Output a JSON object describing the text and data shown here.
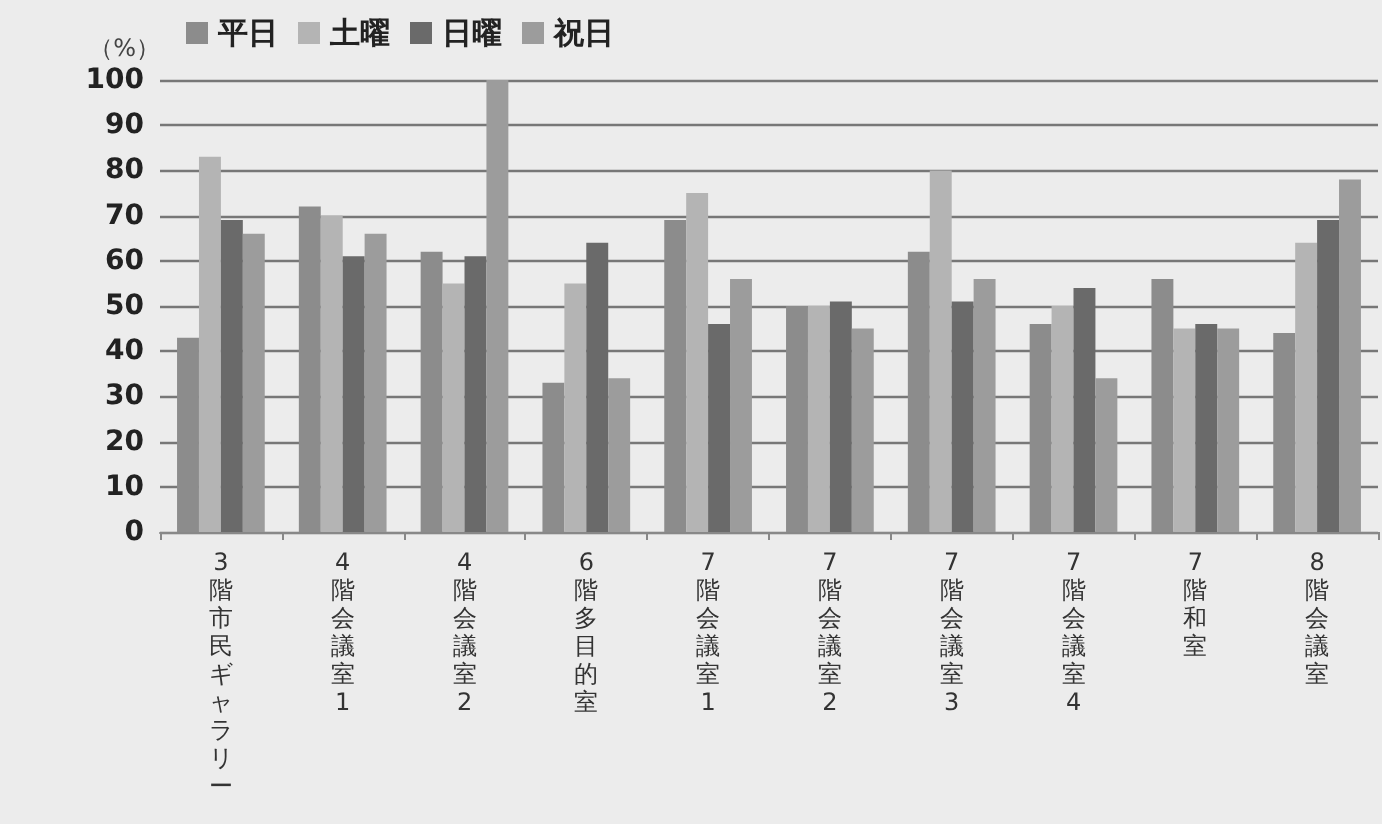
{
  "chart_data": {
    "type": "bar",
    "ylabel": "（%）",
    "categories": [
      "3階市民ギャラリー",
      "4階会議室1",
      "4階会議室2",
      "6階多目的室",
      "7階会議室1",
      "7階会議室2",
      "7階会議室3",
      "7階会議室4",
      "7階和室",
      "8階会議室"
    ],
    "series": [
      {
        "name": "平日",
        "color": "#8c8c8c",
        "values": [
          43,
          72,
          62,
          33,
          69,
          50,
          62,
          46,
          56,
          44
        ]
      },
      {
        "name": "土曜",
        "color": "#b4b4b4",
        "values": [
          83,
          70,
          55,
          55,
          75,
          50,
          80,
          50,
          45,
          64
        ]
      },
      {
        "name": "日曜",
        "color": "#6a6a6a",
        "values": [
          69,
          61,
          61,
          64,
          46,
          51,
          51,
          54,
          46,
          69
        ]
      },
      {
        "name": "祝日",
        "color": "#9c9c9c",
        "values": [
          66,
          66,
          100,
          34,
          56,
          45,
          56,
          34,
          45,
          78
        ]
      }
    ],
    "ylim": [
      0,
      100
    ],
    "yticks": [
      0,
      10,
      20,
      30,
      40,
      50,
      60,
      70,
      80,
      90,
      100
    ],
    "grid": "y",
    "legend": "top left"
  }
}
